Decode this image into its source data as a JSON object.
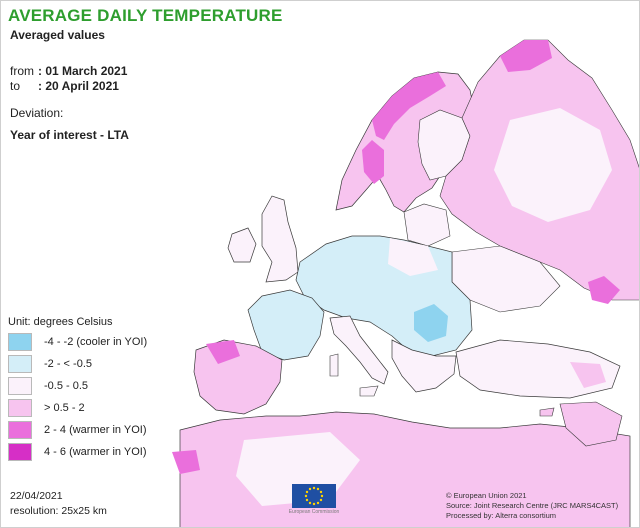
{
  "header": {
    "title": "AVERAGE DAILY TEMPERATURE",
    "subtitle": "Averaged values",
    "from_label": "from",
    "from_value": ": 01 March 2021",
    "to_label": "to",
    "to_value": ": 20 April 2021",
    "deviation_label": "Deviation:",
    "deviation_value": "Year of interest - LTA"
  },
  "legend": {
    "unit": "Unit: degrees Celsius",
    "classes": [
      {
        "label": "-4 - -2 (cooler in YOI)",
        "color": "#8ed3ef"
      },
      {
        "label": "-2 - < -0.5",
        "color": "#d4eef8"
      },
      {
        "label": "-0.5 - 0.5",
        "color": "#fbf2fb"
      },
      {
        "label": "> 0.5 - 2",
        "color": "#f7c4ef"
      },
      {
        "label": "2 - 4 (warmer in YOI)",
        "color": "#ea6fdc"
      },
      {
        "label": "4 - 6 (warmer in YOI)",
        "color": "#d62fc6"
      }
    ]
  },
  "footer": {
    "date": "22/04/2021",
    "resolution": "resolution: 25x25 km",
    "logo_text": "European Commission",
    "credit_1": "© European Union 2021",
    "credit_2": "Source: Joint Research Centre (JRC MARS4CAST)",
    "credit_3": "Processed by: Alterra consortium"
  },
  "colors": {
    "title": "#2e9e2e",
    "sea": "#ffffff",
    "border": "#3a3a3a",
    "eu_blue": "#1f4fa3",
    "eu_star": "#ffd200"
  }
}
